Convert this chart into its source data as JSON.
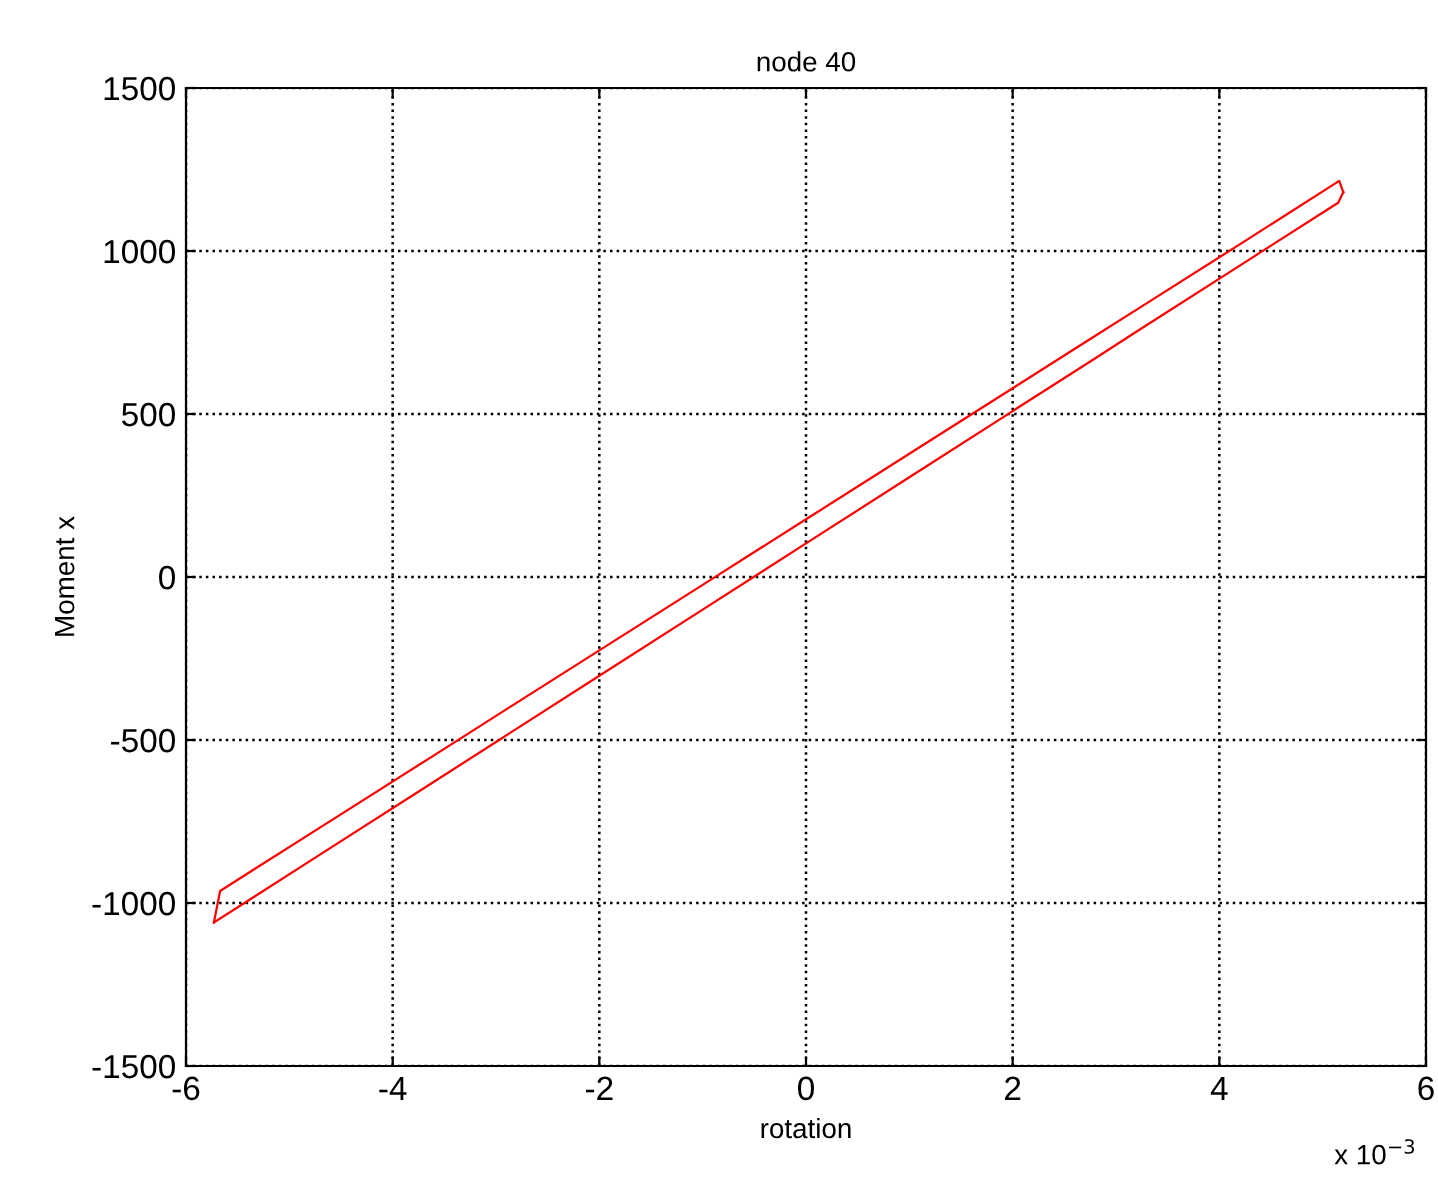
{
  "chart_data": {
    "type": "line",
    "title": "node 40",
    "xlabel": "rotation",
    "ylabel": "Moment x",
    "annotations": [
      "x 10$^{−3}$"
    ],
    "series": [
      {
        "color": "#ff0000",
        "x": [
          -5.73,
          -4.7,
          -3.6,
          -3,
          -2,
          -1,
          0,
          1,
          2,
          2.8,
          3.2,
          4.3,
          5.15,
          5.2
        ],
        "values": [
          -1060,
          -851,
          -628,
          -506,
          -303,
          -100,
          103,
          306,
          509,
          671,
          753,
          976,
          1148,
          1180
        ]
      },
      {
        "color": "#ff0000",
        "x": [
          -5.73,
          -5.67,
          -4.7,
          -3.6,
          -3,
          -2,
          -1,
          0,
          1,
          2,
          2.8,
          3.2,
          4.3,
          5.16,
          5.2
        ],
        "values": [
          -1060,
          -963,
          -768,
          -547,
          -426,
          -225,
          -24,
          177,
          378,
          579,
          740,
          820,
          1041,
          1215,
          1180
        ]
      }
    ],
    "xlim": [
      -6,
      6
    ],
    "xticks": [
      -6,
      -4,
      -2,
      0,
      2,
      4,
      6
    ],
    "ylim": [
      -1500,
      1500
    ],
    "yticks": [
      -1500,
      -1000,
      -500,
      0,
      500,
      1000,
      1500
    ],
    "grid": true,
    "marker": "none",
    "line_style": "solid"
  }
}
